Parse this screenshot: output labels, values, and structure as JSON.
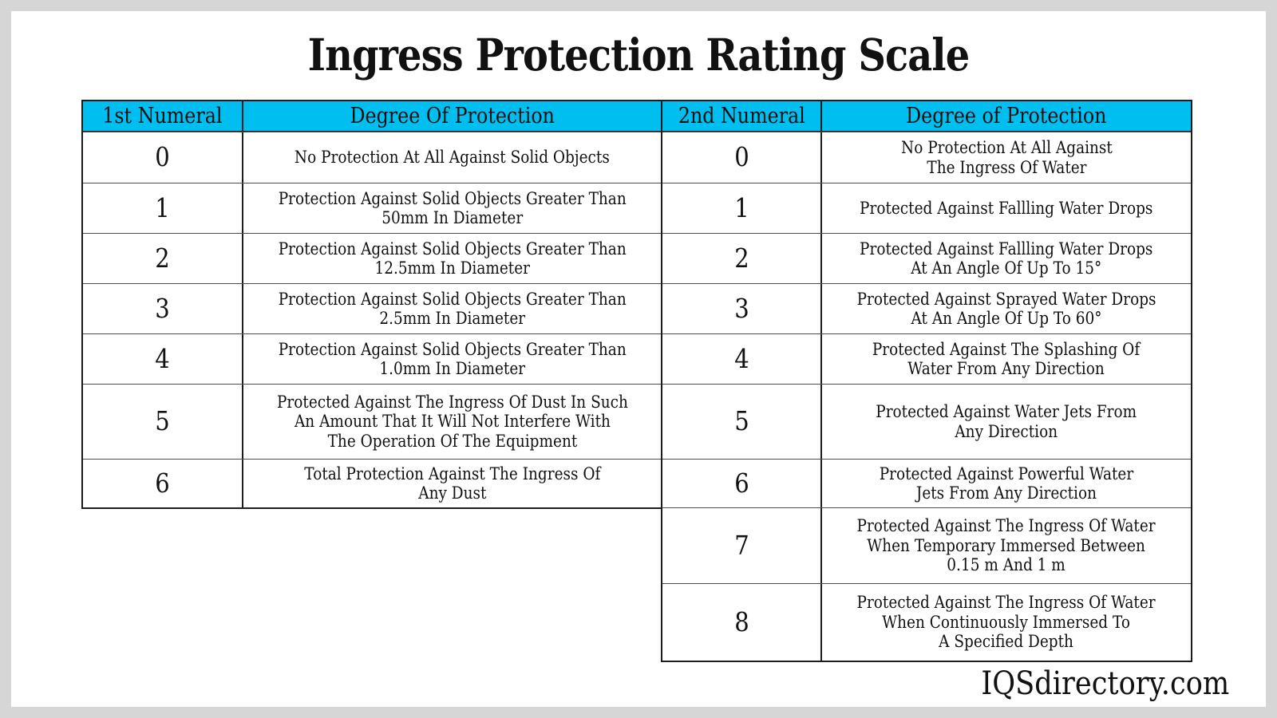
{
  "page": {
    "title": "Ingress Protection Rating Scale",
    "watermark": "IQSdirectory.com",
    "colors": {
      "header_bg": "#00BFF0",
      "frame_gray": "#D6D6D6",
      "border_dark": "#1C1C1C"
    }
  },
  "chart_data": [
    {
      "type": "table",
      "title": "Ingress Protection Rating Scale",
      "columns": [
        "1st Numeral",
        "Degree Of Protection"
      ],
      "rows": [
        [
          "0",
          "No Protection At All Against Solid Objects"
        ],
        [
          "1",
          "Protection Against Solid Objects Greater Than\n50mm In Diameter"
        ],
        [
          "2",
          "Protection Against Solid Objects Greater Than\n12.5mm In Diameter"
        ],
        [
          "3",
          "Protection Against Solid Objects Greater Than\n2.5mm In Diameter"
        ],
        [
          "4",
          "Protection Against Solid Objects Greater Than\n1.0mm In Diameter"
        ],
        [
          "5",
          "Protected Against The Ingress Of Dust In Such\nAn Amount That It Will Not Interfere With\nThe Operation Of The Equipment"
        ],
        [
          "6",
          "Total Protection Against The Ingress Of\nAny Dust"
        ]
      ]
    },
    {
      "type": "table",
      "columns": [
        "2nd Numeral",
        "Degree of Protection"
      ],
      "rows": [
        [
          "0",
          "No Protection At All Against\nThe Ingress Of Water"
        ],
        [
          "1",
          "Protected Against Fallling Water Drops"
        ],
        [
          "2",
          "Protected Against Fallling Water Drops\nAt An Angle Of Up To 15°"
        ],
        [
          "3",
          "Protected Against Sprayed Water Drops\nAt An Angle Of Up To 60°"
        ],
        [
          "4",
          "Protected Against The Splashing  Of\nWater From Any Direction"
        ],
        [
          "5",
          "Protected Against Water Jets From\nAny Direction"
        ],
        [
          "6",
          "Protected Against Powerful Water\nJets From Any Direction"
        ],
        [
          "7",
          "Protected Against The Ingress Of Water\nWhen Temporary Immersed Between\n0.15 m And 1 m"
        ],
        [
          "8",
          "Protected Against The Ingress Of Water\nWhen Continuously Immersed To\nA Specified Depth"
        ]
      ]
    }
  ]
}
